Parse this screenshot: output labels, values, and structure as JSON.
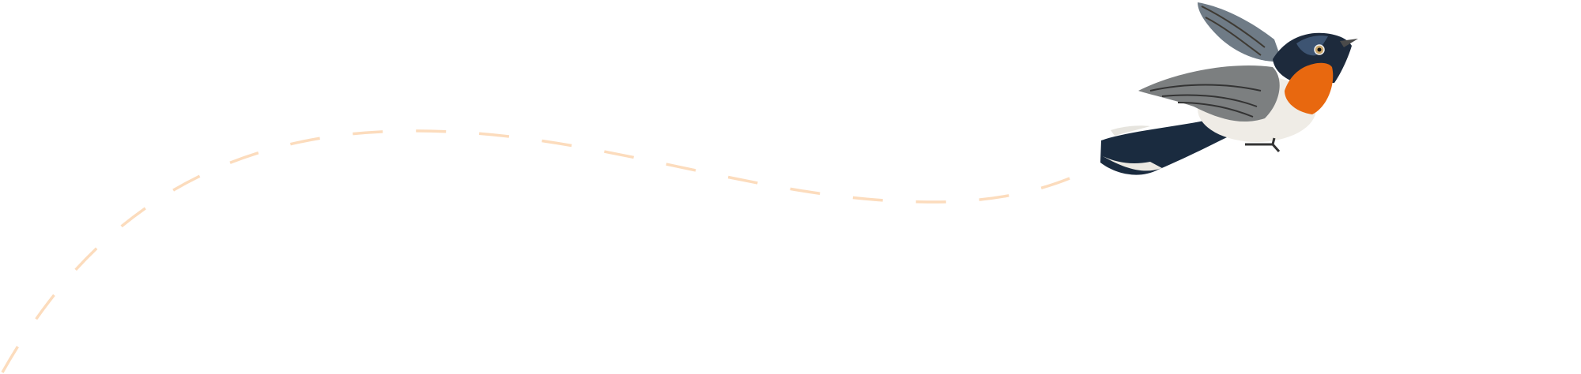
{
  "illustration": {
    "subject": "bird-icon",
    "path_style": "dashed",
    "colors": {
      "path": "#fcdcbd",
      "bird_head": "#1d2a3c",
      "bird_throat": "#e8680f",
      "bird_belly": "#efece6",
      "bird_wing": "#7c7f80",
      "bird_tail": "#1a2b3f"
    }
  }
}
